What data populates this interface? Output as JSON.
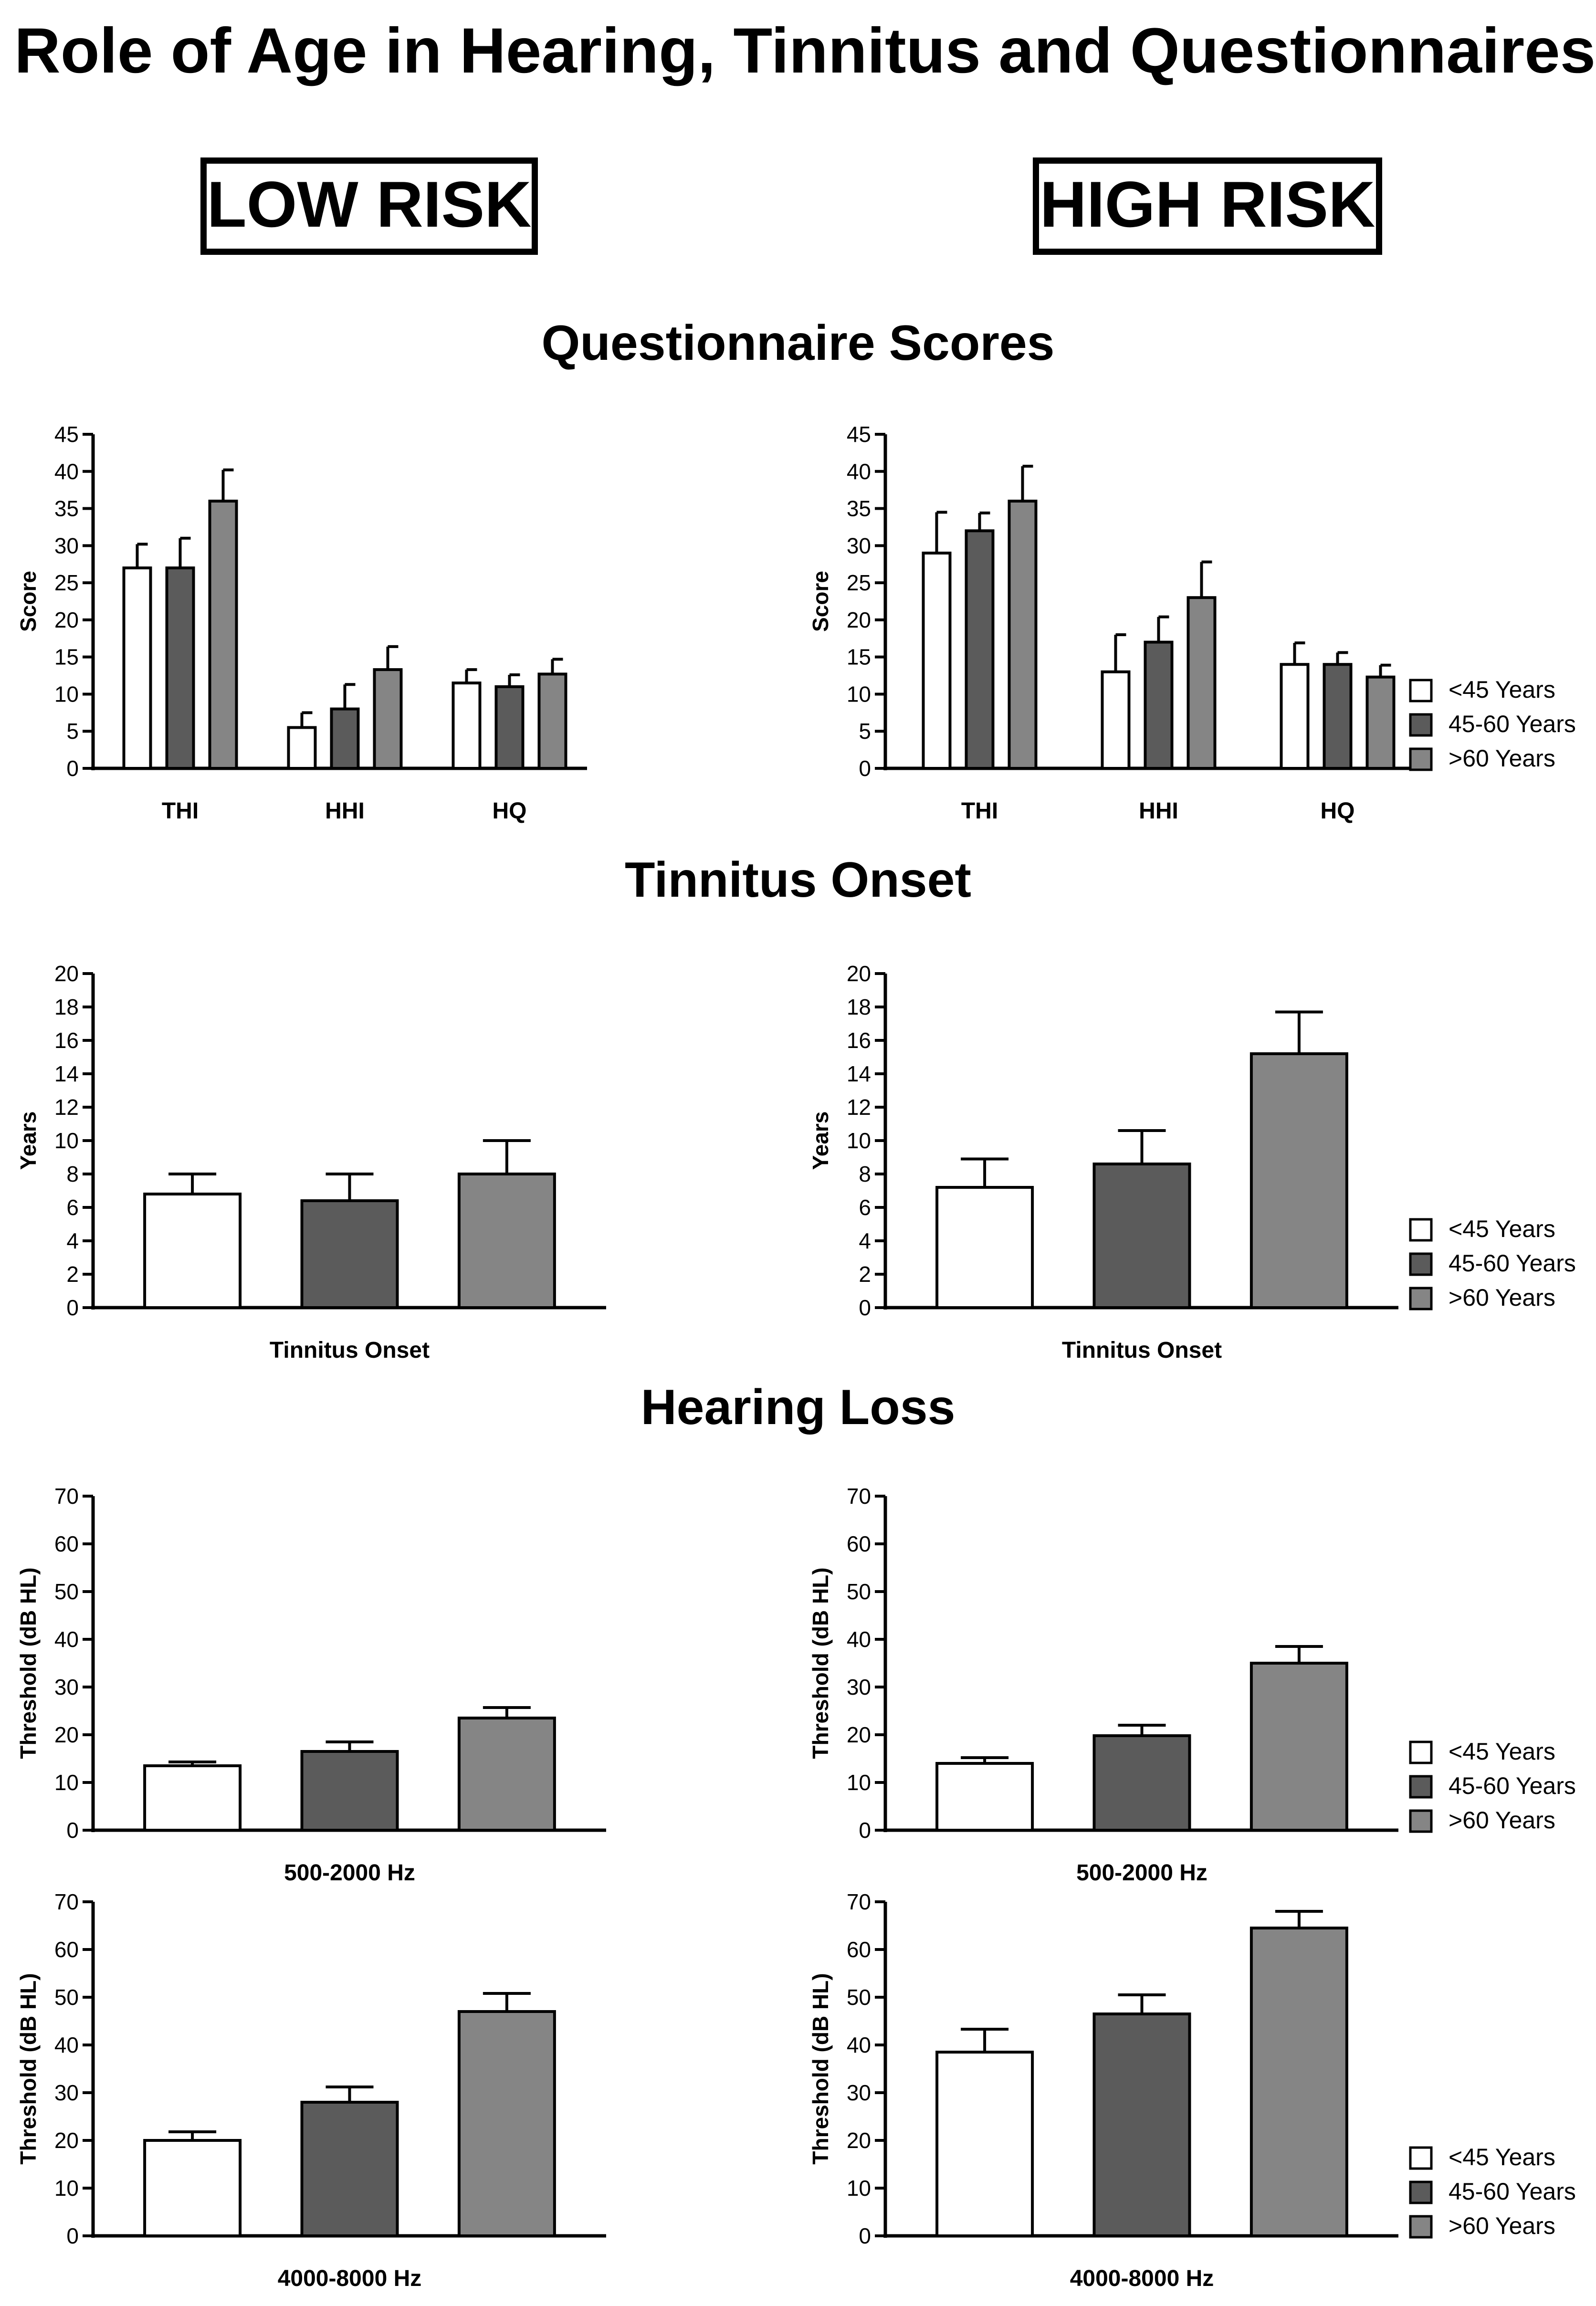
{
  "title": "Role of Age in Hearing, Tinnitus and Questionnaires",
  "groups": {
    "low": "LOW RISK",
    "high": "HIGH RISK"
  },
  "sections": {
    "questionnaire": "Questionnaire Scores",
    "tinnitus": "Tinnitus Onset",
    "hearing": "Hearing Loss"
  },
  "colors": {
    "lt45": "#ffffff",
    "mid": "#5b5b5b",
    "gt60": "#858585",
    "stroke": "#000000"
  },
  "legend": [
    "<45 Years",
    "45-60 Years",
    ">60 Years"
  ],
  "chart_data": [
    {
      "id": "q-low",
      "type": "bar",
      "ylabel": "Score",
      "ylim": [
        0,
        45
      ],
      "yticks": [
        0,
        5,
        10,
        15,
        20,
        25,
        30,
        35,
        40,
        45
      ],
      "categories": [
        "THI",
        "HHI",
        "HQ"
      ],
      "series": [
        {
          "name": "<45 Years",
          "values": [
            27,
            5.5,
            11.5
          ],
          "errors": [
            3.2,
            2,
            1.8
          ]
        },
        {
          "name": "45-60 Years",
          "values": [
            27,
            8,
            11
          ],
          "errors": [
            4,
            3.3,
            1.6
          ]
        },
        {
          "name": ">60 Years",
          "values": [
            36,
            13.3,
            12.7
          ],
          "errors": [
            4.2,
            3.1,
            2
          ]
        }
      ]
    },
    {
      "id": "q-high",
      "type": "bar",
      "ylabel": "Score",
      "ylim": [
        0,
        45
      ],
      "yticks": [
        0,
        5,
        10,
        15,
        20,
        25,
        30,
        35,
        40,
        45
      ],
      "categories": [
        "THI",
        "HHI",
        "HQ"
      ],
      "series": [
        {
          "name": "<45 Years",
          "values": [
            29,
            13,
            14
          ],
          "errors": [
            5.5,
            5,
            2.9
          ]
        },
        {
          "name": "45-60 Years",
          "values": [
            32,
            17,
            14
          ],
          "errors": [
            2.4,
            3.4,
            1.6
          ]
        },
        {
          "name": ">60 Years",
          "values": [
            36,
            23,
            12.3
          ],
          "errors": [
            4.7,
            4.8,
            1.6
          ]
        }
      ]
    },
    {
      "id": "t-low",
      "type": "bar",
      "ylabel": "Years",
      "xlabel": "Tinnitus Onset",
      "ylim": [
        0,
        20
      ],
      "yticks": [
        0,
        2,
        4,
        6,
        8,
        10,
        12,
        14,
        16,
        18,
        20
      ],
      "categories": [
        "Tinnitus Onset"
      ],
      "series": [
        {
          "name": "<45 Years",
          "values": [
            6.8
          ],
          "errors": [
            1.2
          ]
        },
        {
          "name": "45-60 Years",
          "values": [
            6.4
          ],
          "errors": [
            1.6
          ]
        },
        {
          "name": ">60 Years",
          "values": [
            8
          ],
          "errors": [
            2
          ]
        }
      ]
    },
    {
      "id": "t-high",
      "type": "bar",
      "ylabel": "Years",
      "xlabel": "Tinnitus Onset",
      "ylim": [
        0,
        20
      ],
      "yticks": [
        0,
        2,
        4,
        6,
        8,
        10,
        12,
        14,
        16,
        18,
        20
      ],
      "categories": [
        "Tinnitus Onset"
      ],
      "series": [
        {
          "name": "<45 Years",
          "values": [
            7.2
          ],
          "errors": [
            1.7
          ]
        },
        {
          "name": "45-60 Years",
          "values": [
            8.6
          ],
          "errors": [
            2
          ]
        },
        {
          "name": ">60 Years",
          "values": [
            15.2
          ],
          "errors": [
            2.5
          ]
        }
      ]
    },
    {
      "id": "h1-low",
      "type": "bar",
      "ylabel": "Threshold (dB HL)",
      "xlabel": "500-2000 Hz",
      "ylim": [
        0,
        70
      ],
      "yticks": [
        0,
        10,
        20,
        30,
        40,
        50,
        60,
        70
      ],
      "categories": [
        "500-2000 Hz"
      ],
      "series": [
        {
          "name": "<45 Years",
          "values": [
            13.5
          ],
          "errors": [
            0.8
          ]
        },
        {
          "name": "45-60 Years",
          "values": [
            16.5
          ],
          "errors": [
            2
          ]
        },
        {
          "name": ">60 Years",
          "values": [
            23.5
          ],
          "errors": [
            2.2
          ]
        }
      ]
    },
    {
      "id": "h1-high",
      "type": "bar",
      "ylabel": "Threshold (dB HL)",
      "xlabel": "500-2000 Hz",
      "ylim": [
        0,
        70
      ],
      "yticks": [
        0,
        10,
        20,
        30,
        40,
        50,
        60,
        70
      ],
      "categories": [
        "500-2000 Hz"
      ],
      "series": [
        {
          "name": "<45 Years",
          "values": [
            14
          ],
          "errors": [
            1.2
          ]
        },
        {
          "name": "45-60 Years",
          "values": [
            19.8
          ],
          "errors": [
            2.2
          ]
        },
        {
          "name": ">60 Years",
          "values": [
            35
          ],
          "errors": [
            3.5
          ]
        }
      ]
    },
    {
      "id": "h2-low",
      "type": "bar",
      "ylabel": "Threshold (dB HL)",
      "xlabel": "4000-8000 Hz",
      "ylim": [
        0,
        70
      ],
      "yticks": [
        0,
        10,
        20,
        30,
        40,
        50,
        60,
        70
      ],
      "categories": [
        "4000-8000 Hz"
      ],
      "series": [
        {
          "name": "<45 Years",
          "values": [
            20
          ],
          "errors": [
            1.8
          ]
        },
        {
          "name": "45-60 Years",
          "values": [
            28
          ],
          "errors": [
            3.2
          ]
        },
        {
          "name": ">60 Years",
          "values": [
            47
          ],
          "errors": [
            3.8
          ]
        }
      ]
    },
    {
      "id": "h2-high",
      "type": "bar",
      "ylabel": "Threshold (dB HL)",
      "xlabel": "4000-8000 Hz",
      "ylim": [
        0,
        70
      ],
      "yticks": [
        0,
        10,
        20,
        30,
        40,
        50,
        60,
        70
      ],
      "categories": [
        "4000-8000 Hz"
      ],
      "series": [
        {
          "name": "<45 Years",
          "values": [
            38.5
          ],
          "errors": [
            4.8
          ]
        },
        {
          "name": "45-60 Years",
          "values": [
            46.5
          ],
          "errors": [
            4
          ]
        },
        {
          "name": ">60 Years",
          "values": [
            64.5
          ],
          "errors": [
            3.5
          ]
        }
      ]
    }
  ]
}
